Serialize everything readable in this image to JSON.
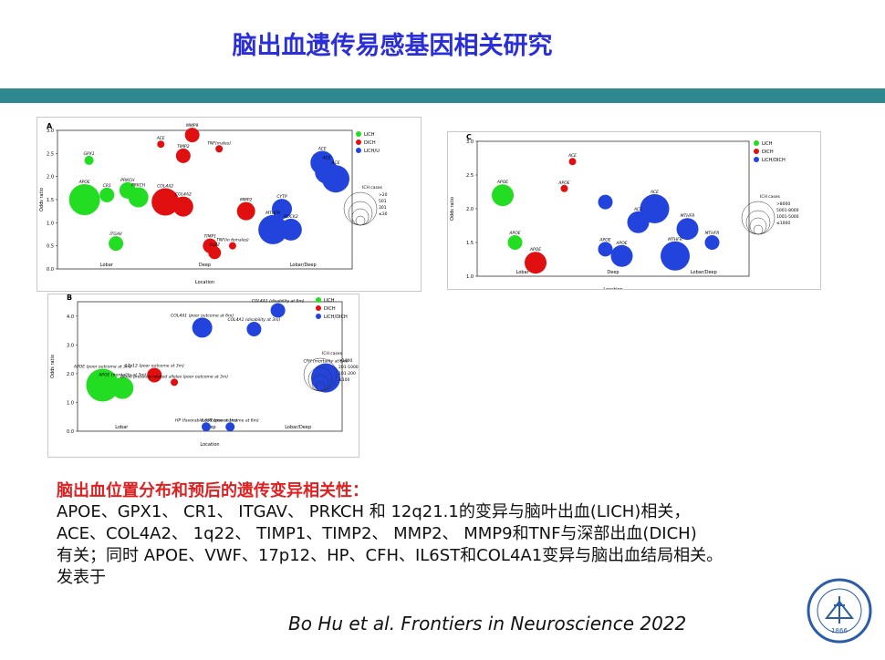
{
  "slide": {
    "title": "脑出血遗传易感基因相关研究",
    "heading": "脑出血位置分布和预后的遗传变异相关性：",
    "body_lines": [
      "APOE、GPX1、 CR1、 ITGAV、 PRKCH 和 12q21.1的变异与脑叶出血(LICH)相关，",
      "ACE、COL4A2、 1q22、 TIMP1、TIMP2、 MMP2、 MMP9和TNF与深部出血(DICH)",
      "有关；同时 APOE、VWF、17p12、HP、CFH、IL6ST和COL4A1变异与脑出血结局相关。",
      "发表于"
    ],
    "citation": "Bo Hu et al. Frontiers in Neuroscience 2022",
    "logo_text": "UNION HOSPITAL",
    "logo_year": "1866"
  },
  "colors": {
    "lich": "#22dd22",
    "dich": "#e01010",
    "lichu": "#2244dd",
    "accent_bar": "#2f8790",
    "title": "#2b2fd8",
    "heading": "#e02020"
  },
  "chart_data": [
    {
      "panel": "A",
      "type": "scatter",
      "xlabel": "Location",
      "ylabel": "Odds ratio",
      "categories": [
        "Lobar",
        "Deep",
        "Lobar/Deep"
      ],
      "xlim": [
        0,
        3
      ],
      "ylim": [
        0,
        3
      ],
      "yticks": [
        0.0,
        0.5,
        1.0,
        1.5,
        2.0,
        2.5,
        3.0
      ],
      "legend": {
        "position": "top-right",
        "entries": [
          "LICH",
          "DICH",
          "LICH/U"
        ]
      },
      "size_legend": {
        "title": "ICH cases",
        "labels": [
          ">20",
          "501",
          "301",
          "≤30"
        ]
      },
      "series": [
        {
          "name": "LICH",
          "color": "#22dd22",
          "points": [
            {
              "label": "GPX1",
              "x": 0.25,
              "y": 2.35,
              "size": 5
            },
            {
              "label": "APOE",
              "x": 0.2,
              "y": 1.5,
              "size": 17
            },
            {
              "label": "CR1",
              "x": 0.45,
              "y": 1.6,
              "size": 8
            },
            {
              "label": "PRKCH",
              "x": 0.68,
              "y": 1.7,
              "size": 9
            },
            {
              "label": "PRKCH",
              "x": 0.8,
              "y": 1.55,
              "size": 11
            },
            {
              "label": "ITGAV",
              "x": 0.55,
              "y": 0.55,
              "size": 8
            }
          ]
        },
        {
          "name": "DICH",
          "color": "#e01010",
          "points": [
            {
              "label": "ACE",
              "x": 1.05,
              "y": 2.7,
              "size": 4
            },
            {
              "label": "MMP9",
              "x": 1.4,
              "y": 2.9,
              "size": 8
            },
            {
              "label": "TNF(males)",
              "x": 1.7,
              "y": 2.6,
              "size": 4
            },
            {
              "label": "TIMP2",
              "x": 1.3,
              "y": 2.45,
              "size": 8
            },
            {
              "label": "COL4A2",
              "x": 1.1,
              "y": 1.45,
              "size": 15
            },
            {
              "label": "COL4A2",
              "x": 1.3,
              "y": 1.35,
              "size": 11
            },
            {
              "label": "MMP2",
              "x": 2.0,
              "y": 1.25,
              "size": 10
            },
            {
              "label": "TIMP1",
              "x": 1.6,
              "y": 0.5,
              "size": 8
            },
            {
              "label": "1q22",
              "x": 1.65,
              "y": 0.35,
              "size": 7
            },
            {
              "label": "TNF(in females)",
              "x": 1.85,
              "y": 0.5,
              "size": 4
            }
          ]
        },
        {
          "name": "LICH/U",
          "color": "#2244dd",
          "points": [
            {
              "label": "ACE",
              "x": 2.85,
              "y": 2.3,
              "size": 13
            },
            {
              "label": "ACE",
              "x": 2.9,
              "y": 2.1,
              "size": 13
            },
            {
              "label": "ACE",
              "x": 3.0,
              "y": 1.95,
              "size": 15
            },
            {
              "label": "CYTP",
              "x": 2.4,
              "y": 1.3,
              "size": 11
            },
            {
              "label": "MTHFR",
              "x": 2.3,
              "y": 0.85,
              "size": 16
            },
            {
              "label": "ROCK2",
              "x": 2.5,
              "y": 0.85,
              "size": 12
            }
          ]
        }
      ]
    },
    {
      "panel": "B",
      "type": "scatter",
      "xlabel": "Location",
      "ylabel": "Odds ratio",
      "categories": [
        "Lobar",
        "Deep",
        "Lobar/Deep"
      ],
      "xlim": [
        0,
        3
      ],
      "ylim": [
        0,
        4.5
      ],
      "yticks": [
        0.0,
        1.0,
        2.0,
        3.0,
        4.0
      ],
      "legend": {
        "position": "top-right",
        "entries": [
          "LICH",
          "DICH",
          "LICH/DICH"
        ]
      },
      "size_legend": {
        "title": "ICH cases",
        "labels": [
          ">1000",
          "201-1000",
          "101-200",
          "≤100"
        ]
      },
      "series": [
        {
          "name": "LICH",
          "color": "#22dd22",
          "points": [
            {
              "label": "APOE (poor outcome at 3m)",
              "x": 0.2,
              "y": 1.6,
              "size": 18
            },
            {
              "label": "APOE (mortality at 3m)",
              "x": 0.45,
              "y": 1.5,
              "size": 12
            }
          ]
        },
        {
          "name": "DICH",
          "color": "#e01010",
          "points": [
            {
              "label": "17p12 (poor outcome at 3m)",
              "x": 0.85,
              "y": 1.95,
              "size": 8
            },
            {
              "label": "Blood pressure related alleles (poor outcome at 3m)",
              "x": 1.1,
              "y": 1.7,
              "size": 4
            }
          ]
        },
        {
          "name": "LICH/DICH",
          "color": "#2244dd",
          "points": [
            {
              "label": "COL4A1 (poor outcome at 6m)",
              "x": 1.45,
              "y": 3.6,
              "size": 11
            },
            {
              "label": "COL4A1 (disability at 6m)",
              "x": 2.4,
              "y": 4.2,
              "size": 8
            },
            {
              "label": "COL4A1 (disability at 3m)",
              "x": 2.1,
              "y": 3.55,
              "size": 8
            },
            {
              "label": "CFH (mortality at 6m)",
              "x": 3.0,
              "y": 1.85,
              "size": 16
            },
            {
              "label": "HP (favorable outcome at 1m)",
              "x": 1.5,
              "y": 0.15,
              "size": 5
            },
            {
              "label": "IL6ST (poor outcome at 6m)",
              "x": 1.8,
              "y": 0.15,
              "size": 5
            }
          ]
        }
      ]
    },
    {
      "panel": "C",
      "type": "scatter",
      "xlabel": "Location",
      "ylabel": "Odds ratio",
      "categories": [
        "Lobar",
        "Deep",
        "Lobar/Deep"
      ],
      "xlim": [
        0,
        3
      ],
      "ylim": [
        1.0,
        3.0
      ],
      "yticks": [
        1.0,
        1.5,
        2.0,
        2.5,
        3.0
      ],
      "legend": {
        "position": "top-right",
        "entries": [
          "LICH",
          "DICH",
          "LICH/DICH"
        ]
      },
      "size_legend": {
        "title": "ICH cases",
        "labels": [
          ">8000",
          "5001-8000",
          "1001-5000",
          "≤1000"
        ]
      },
      "series": [
        {
          "name": "LICH",
          "color": "#22dd22",
          "points": [
            {
              "label": "APOE",
              "x": 0.2,
              "y": 2.2,
              "size": 12
            },
            {
              "label": "APOE",
              "x": 0.35,
              "y": 1.5,
              "size": 8
            }
          ]
        },
        {
          "name": "DICH",
          "color": "#e01010",
          "points": [
            {
              "label": "ACE",
              "x": 1.05,
              "y": 2.7,
              "size": 4
            },
            {
              "label": "APOE",
              "x": 0.95,
              "y": 2.3,
              "size": 4
            },
            {
              "label": "APOE",
              "x": 0.6,
              "y": 1.2,
              "size": 12
            }
          ]
        },
        {
          "name": "LICH/DICH",
          "color": "#2244dd",
          "points": [
            {
              "label": "",
              "x": 1.45,
              "y": 2.1,
              "size": 8
            },
            {
              "label": "ACE",
              "x": 2.05,
              "y": 2.0,
              "size": 16
            },
            {
              "label": "ACE",
              "x": 1.85,
              "y": 1.8,
              "size": 12
            },
            {
              "label": "APOE",
              "x": 1.45,
              "y": 1.4,
              "size": 8
            },
            {
              "label": "APOE",
              "x": 1.65,
              "y": 1.3,
              "size": 12
            },
            {
              "label": "MTHFR",
              "x": 2.45,
              "y": 1.7,
              "size": 12
            },
            {
              "label": "MTHFR",
              "x": 2.3,
              "y": 1.3,
              "size": 16
            },
            {
              "label": "MTHFR",
              "x": 2.75,
              "y": 1.5,
              "size": 8
            }
          ]
        }
      ]
    }
  ]
}
